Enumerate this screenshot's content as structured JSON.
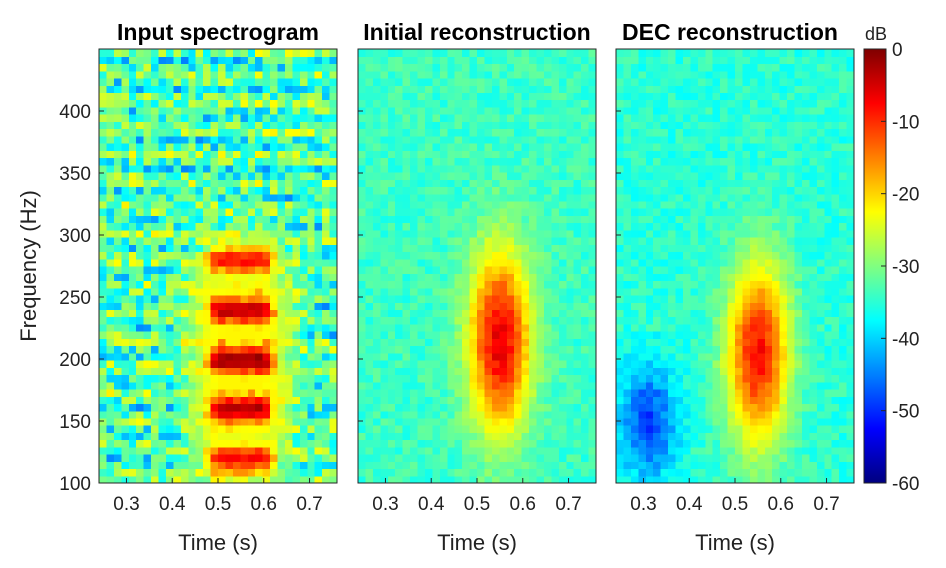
{
  "chart_data": [
    {
      "type": "heatmap",
      "title": "Input spectrogram",
      "xlabel": "Time (s)",
      "ylabel": "Frequency (Hz)",
      "xlim": [
        0.24,
        0.76
      ],
      "ylim": [
        100,
        450
      ],
      "xticks": [
        0.3,
        0.4,
        0.5,
        0.6,
        0.7
      ],
      "yticks": [
        100,
        150,
        200,
        250,
        300,
        350,
        400
      ],
      "value_unit": "dB",
      "blobs": [
        {
          "t": 0.55,
          "f": 120,
          "peak_db": -8
        },
        {
          "t": 0.55,
          "f": 160,
          "peak_db": -3
        },
        {
          "t": 0.55,
          "f": 200,
          "peak_db": -1
        },
        {
          "t": 0.55,
          "f": 240,
          "peak_db": -3
        },
        {
          "t": 0.55,
          "f": 280,
          "peak_db": -8
        }
      ],
      "background_db": -33
    },
    {
      "type": "heatmap",
      "title": "Initial reconstruction",
      "xlabel": "Time (s)",
      "ylabel": "",
      "xlim": [
        0.24,
        0.76
      ],
      "ylim": [
        100,
        450
      ],
      "xticks": [
        0.3,
        0.4,
        0.5,
        0.6,
        0.7
      ],
      "value_unit": "dB",
      "blobs": [
        {
          "t": 0.55,
          "f": 215,
          "peak_db": -6
        }
      ],
      "background_db": -34
    },
    {
      "type": "heatmap",
      "title": "DEC reconstruction",
      "xlabel": "Time (s)",
      "ylabel": "",
      "xlim": [
        0.24,
        0.76
      ],
      "ylim": [
        100,
        450
      ],
      "xticks": [
        0.3,
        0.4,
        0.5,
        0.6,
        0.7
      ],
      "value_unit": "dB",
      "blobs": [
        {
          "t": 0.55,
          "f": 205,
          "peak_db": -8
        }
      ],
      "background_db": -35
    }
  ],
  "colorbar": {
    "label": "dB",
    "range": [
      -60,
      0
    ],
    "ticks": [
      0,
      -10,
      -20,
      -30,
      -40,
      -50,
      -60
    ],
    "colormap": "jet"
  }
}
